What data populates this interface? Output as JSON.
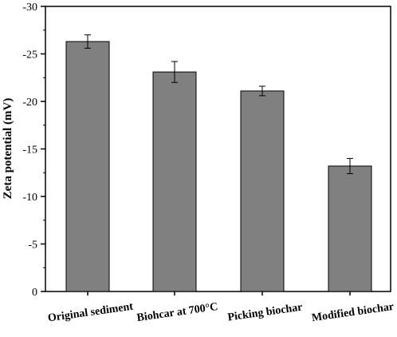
{
  "chart_data": {
    "type": "bar",
    "categories": [
      "Original sediment",
      "Biohcar at 700°C",
      "Picking biochar",
      "Modified biochar"
    ],
    "values": [
      -26.3,
      -23.1,
      -21.1,
      -13.2
    ],
    "errors": [
      0.7,
      1.1,
      0.5,
      0.8
    ],
    "xlabel": "",
    "ylabel": "Zeta potential (mV)",
    "ylim": [
      0,
      -30
    ],
    "y_axis_direction": "downward values increase in magnitude upward",
    "yticks": [
      0,
      -5,
      -10,
      -15,
      -20,
      -25,
      -30
    ],
    "ytick_labels": [
      "0",
      "-5",
      "-10",
      "-15",
      "-20",
      "-25",
      "-30"
    ],
    "bar_color": "#808080",
    "bar_edge_color": "#000000",
    "grid": false,
    "legend": false
  }
}
